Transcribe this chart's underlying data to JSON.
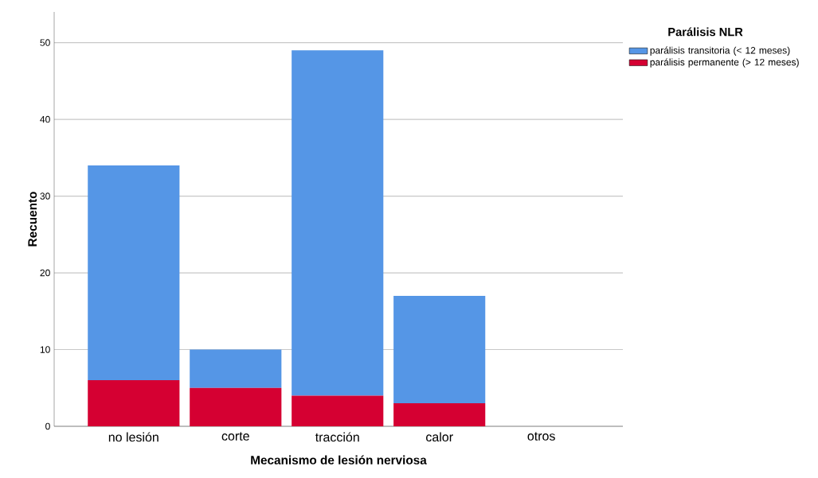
{
  "chart_data": {
    "type": "bar",
    "stacked": true,
    "xlabel": "Mecanismo de lesión nerviosa",
    "ylabel": "Recuento",
    "legend_title": "Parálisis NLR",
    "categories": [
      "no lesión",
      "corte",
      "tracción",
      "calor",
      "otros"
    ],
    "series": [
      {
        "name": "parálisis permanente (> 12 meses)",
        "color": "#d50032",
        "values": [
          6,
          5,
          4,
          3,
          0
        ]
      },
      {
        "name": "parálisis transitoria (< 12 meses)",
        "color": "#5596e6",
        "values": [
          28,
          5,
          45,
          14,
          0
        ]
      }
    ],
    "ylim": [
      0,
      54
    ],
    "yticks": [
      0,
      10,
      20,
      30,
      40,
      50
    ],
    "grid": "y",
    "legend": "top right"
  }
}
